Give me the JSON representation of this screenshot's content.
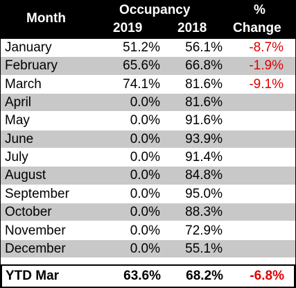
{
  "header": {
    "month": "Month",
    "occupancy": "Occupancy",
    "year1": "2019",
    "year2": "2018",
    "change1": "%",
    "change2": "Change"
  },
  "table": {
    "rows": [
      [
        "January",
        "51.2%",
        "56.1%",
        "-8.7%"
      ],
      [
        "February",
        "65.6%",
        "66.8%",
        "-1.9%"
      ],
      [
        "March",
        "74.1%",
        "81.6%",
        "-9.1%"
      ],
      [
        "April",
        "0.0%",
        "81.6%"
      ],
      [
        "May",
        "0.0%",
        "91.6%"
      ],
      [
        "June",
        "0.0%",
        "93.9%"
      ],
      [
        "July",
        "0.0%",
        "91.4%"
      ],
      [
        "August",
        "0.0%",
        "84.8%"
      ],
      [
        "September",
        "0.0%",
        "95.0%"
      ],
      [
        "October",
        "0.0%",
        "88.3%"
      ],
      [
        "November",
        "0.0%",
        "72.9%"
      ],
      [
        "December",
        "0.0%",
        "55.1%"
      ]
    ]
  },
  "total": [
    "YTD Mar",
    "63.6%",
    "68.2%",
    "-6.8%"
  ]
}
